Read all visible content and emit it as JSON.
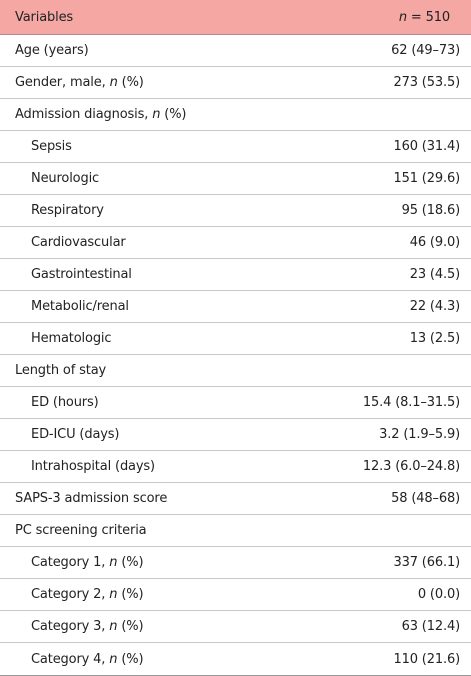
{
  "header": {
    "variables": "Variables",
    "n_italic": "n",
    "n_rest": " = 510"
  },
  "rows": [
    {
      "label": "Age (years)",
      "value": "62 (49–73)"
    },
    {
      "label": "Gender, male, ",
      "label_n": "n",
      "label_suffix": " (%)",
      "value": "273 (53.5)"
    },
    {
      "label": "Admission diagnosis, ",
      "label_n": "n",
      "label_suffix": " (%)",
      "value": ""
    },
    {
      "label": "Sepsis",
      "value": "160 (31.4)"
    },
    {
      "label": "Neurologic",
      "value": "151 (29.6)"
    },
    {
      "label": "Respiratory",
      "value": "95 (18.6)"
    },
    {
      "label": "Cardiovascular",
      "value": "46 (9.0)"
    },
    {
      "label": "Gastrointestinal",
      "value": "23 (4.5)"
    },
    {
      "label": "Metabolic/renal",
      "value": "22 (4.3)"
    },
    {
      "label": "Hematologic",
      "value": "13 (2.5)"
    },
    {
      "label": "Length of stay",
      "value": ""
    },
    {
      "label": "ED (hours)",
      "value": "15.4 (8.1–31.5)"
    },
    {
      "label": "ED-ICU (days)",
      "value": "3.2 (1.9–5.9)"
    },
    {
      "label": "Intrahospital (days)",
      "value": "12.3 (6.0–24.8)"
    },
    {
      "label": "SAPS-3 admission score",
      "value": "58 (48–68)"
    },
    {
      "label": "PC screening criteria",
      "value": ""
    },
    {
      "label": "Category 1, ",
      "label_n": "n",
      "label_suffix": " (%)",
      "value": "337 (66.1)"
    },
    {
      "label": "Category 2, ",
      "label_n": "n",
      "label_suffix": " (%)",
      "value": "0 (0.0)"
    },
    {
      "label": "Category 3, ",
      "label_n": "n",
      "label_suffix": " (%)",
      "value": "63 (12.4)"
    },
    {
      "label": "Category 4, ",
      "label_n": "n",
      "label_suffix": " (%)",
      "value": "110 (21.6)"
    }
  ]
}
